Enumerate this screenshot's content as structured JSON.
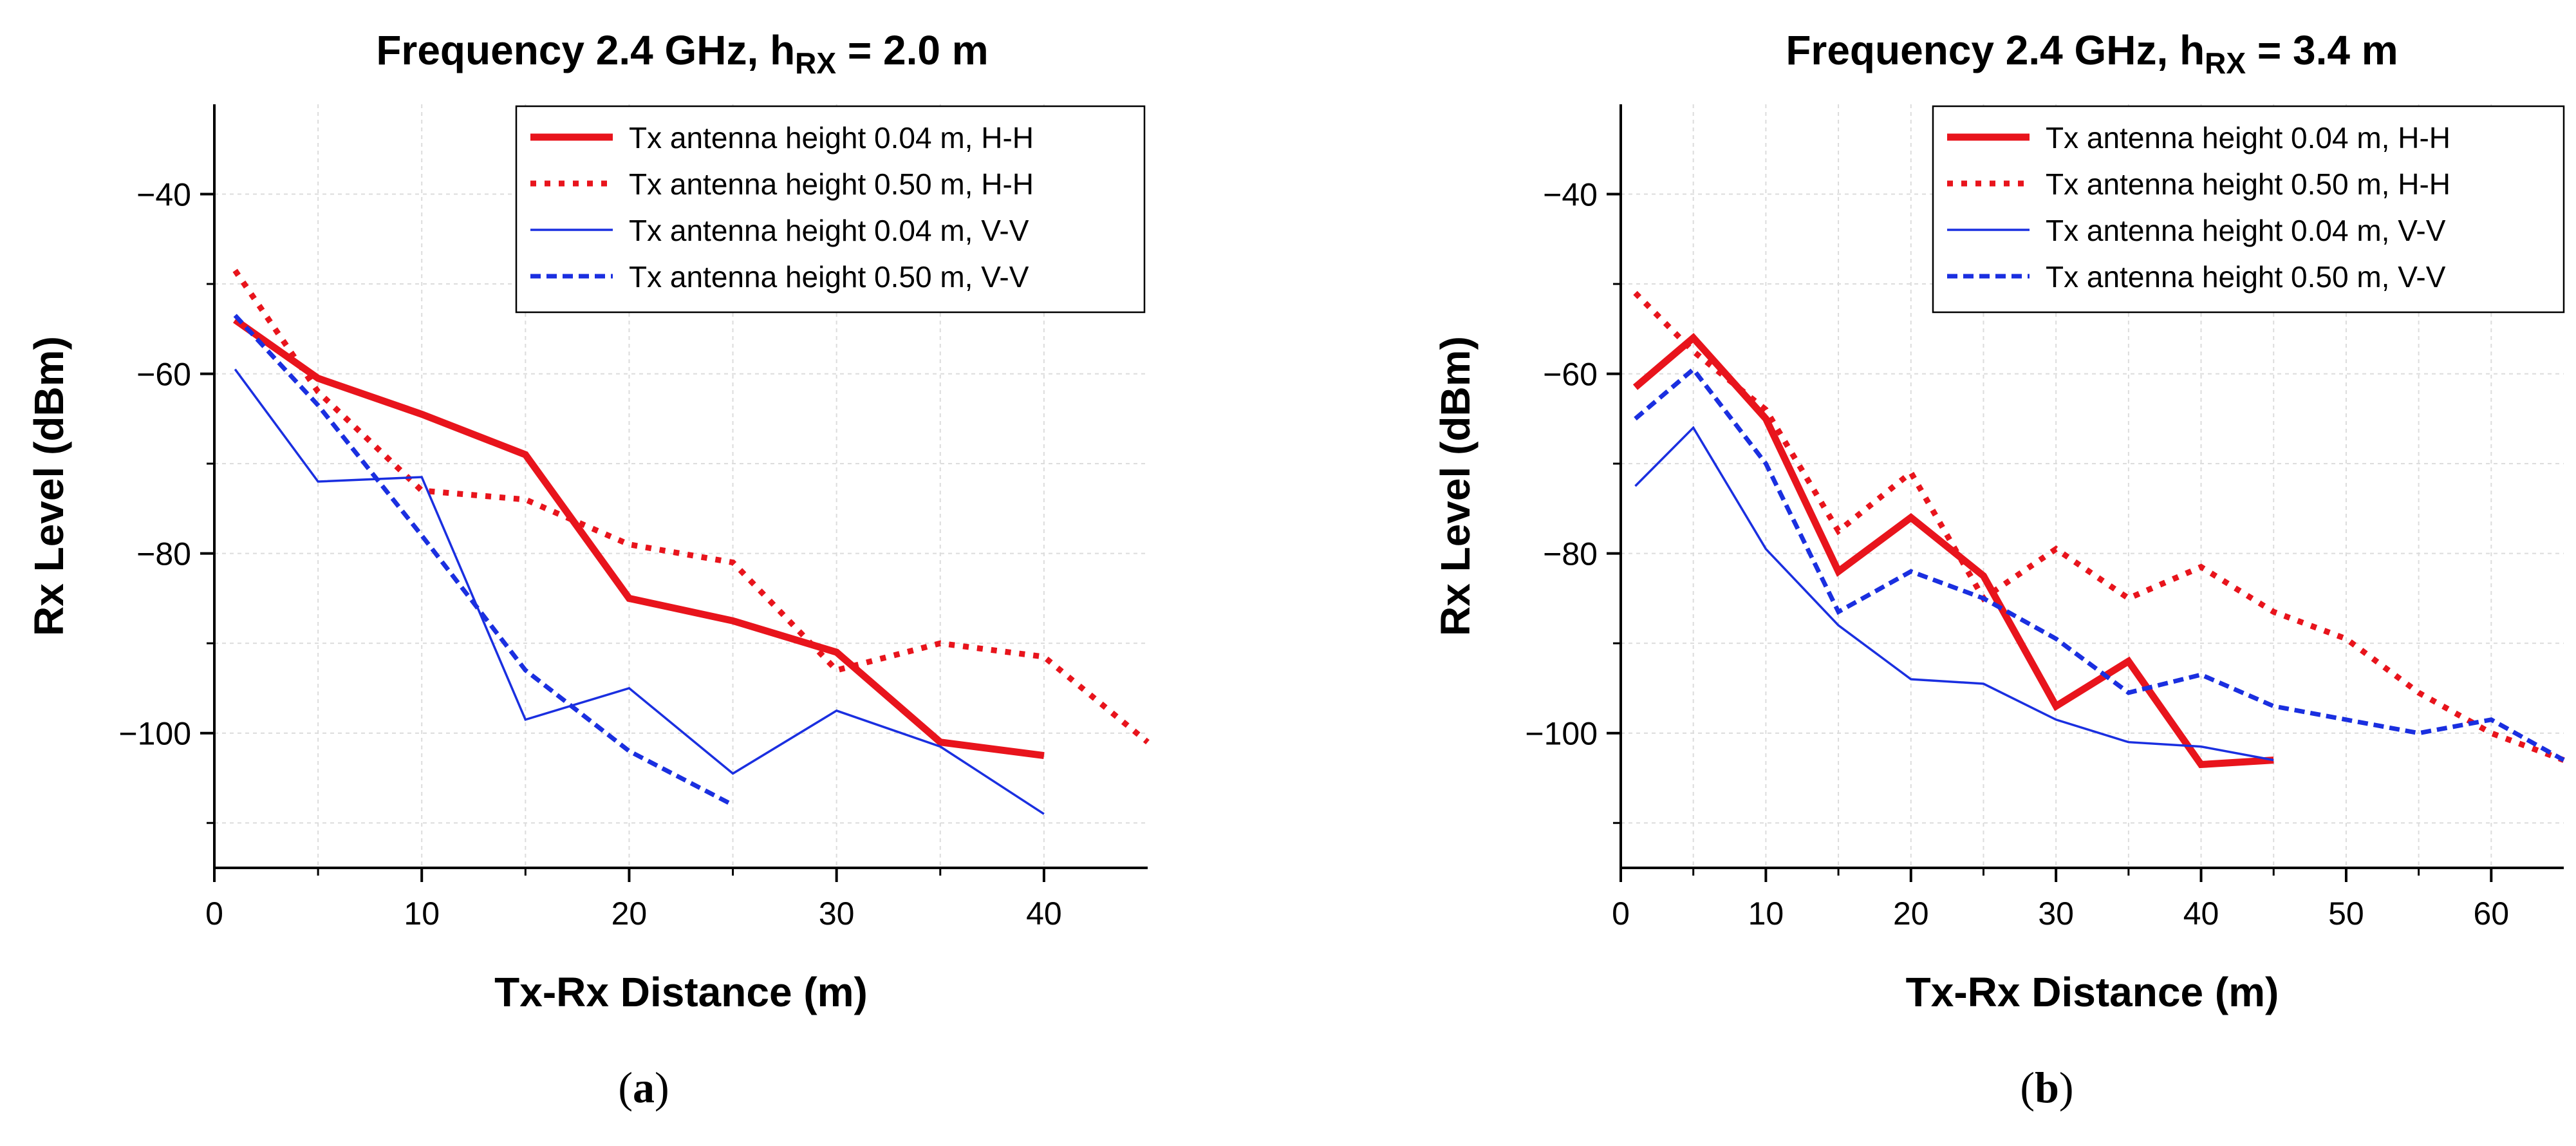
{
  "chart_data": [
    {
      "type": "line",
      "panel_label": "(a)",
      "title": {
        "prefix": "Frequency 2.4 GHz, h",
        "subscript": "RX",
        "suffix": " = 2.0 m"
      },
      "xlabel": "Tx-Rx Distance (m)",
      "ylabel": "Rx Level (dBm)",
      "xlim": [
        0,
        45
      ],
      "ylim": [
        -115,
        -30
      ],
      "xticks": [
        0,
        10,
        20,
        30,
        40
      ],
      "xticks_minor": [
        5,
        15,
        25,
        35
      ],
      "yticks": [
        -40,
        -60,
        -80,
        -100
      ],
      "yticks_minor": [
        -50,
        -70,
        -90,
        -110
      ],
      "grid": true,
      "legend_position": "top-right",
      "series": [
        {
          "name": "Tx antenna height 0.04 m, H-H",
          "color": "#e8141c",
          "style": "solid-thick",
          "x": [
            1,
            5,
            10,
            15,
            20,
            25,
            30,
            35,
            40
          ],
          "y": [
            -54,
            -60.5,
            -64.5,
            -69,
            -85,
            -87.5,
            -91,
            -101,
            -102.5
          ]
        },
        {
          "name": "Tx antenna height 0.50 m, H-H",
          "color": "#e8141c",
          "style": "dotted",
          "x": [
            1,
            5,
            10,
            15,
            20,
            25,
            30,
            35,
            40,
            45
          ],
          "y": [
            -48.5,
            -62,
            -73,
            -74,
            -79,
            -81,
            -93,
            -90,
            -91.5,
            -101
          ]
        },
        {
          "name": "Tx antenna height 0.04 m, V-V",
          "color": "#1a2fe0",
          "style": "solid-thin",
          "x": [
            1,
            5,
            10,
            15,
            20,
            25,
            30,
            35,
            40
          ],
          "y": [
            -59.5,
            -72,
            -71.5,
            -98.5,
            -95,
            -104.5,
            -97.5,
            -101.5,
            -109
          ]
        },
        {
          "name": "Tx antenna height 0.50 m, V-V",
          "color": "#1a2fe0",
          "style": "dashed",
          "x": [
            1,
            5,
            10,
            15,
            20,
            25
          ],
          "y": [
            -53.5,
            -63.5,
            -78,
            -93,
            -102,
            -108
          ]
        }
      ]
    },
    {
      "type": "line",
      "panel_label": "(b)",
      "title": {
        "prefix": "Frequency 2.4 GHz, h",
        "subscript": "RX",
        "suffix": " = 3.4 m"
      },
      "xlabel": "Tx-Rx Distance (m)",
      "ylabel": "Rx Level (dBm)",
      "xlim": [
        0,
        65
      ],
      "ylim": [
        -115,
        -30
      ],
      "xticks": [
        0,
        10,
        20,
        30,
        40,
        50,
        60
      ],
      "xticks_minor": [
        5,
        15,
        25,
        35,
        45,
        55
      ],
      "yticks": [
        -40,
        -60,
        -80,
        -100
      ],
      "yticks_minor": [
        -50,
        -70,
        -90,
        -110
      ],
      "grid": true,
      "legend_position": "top-right",
      "series": [
        {
          "name": "Tx antenna height 0.04 m, H-H",
          "color": "#e8141c",
          "style": "solid-thick",
          "x": [
            1,
            5,
            10,
            15,
            20,
            25,
            30,
            35,
            40,
            45
          ],
          "y": [
            -61.5,
            -56,
            -65,
            -82,
            -76,
            -82.5,
            -97,
            -92,
            -103.5,
            -103
          ]
        },
        {
          "name": "Tx antenna height 0.50 m, H-H",
          "color": "#e8141c",
          "style": "dotted",
          "x": [
            1,
            5,
            10,
            15,
            20,
            25,
            30,
            35,
            40,
            45,
            50,
            55,
            60,
            65
          ],
          "y": [
            -51,
            -57.5,
            -64,
            -77.5,
            -71,
            -85,
            -79.5,
            -85,
            -81.5,
            -86.5,
            -89.5,
            -95.5,
            -100,
            -103
          ]
        },
        {
          "name": "Tx antenna height 0.04 m, V-V",
          "color": "#1a2fe0",
          "style": "solid-thin",
          "x": [
            1,
            5,
            10,
            15,
            20,
            25,
            30,
            35,
            40,
            45
          ],
          "y": [
            -72.5,
            -66,
            -79.5,
            -88,
            -94,
            -94.5,
            -98.5,
            -101,
            -101.5,
            -103
          ]
        },
        {
          "name": "Tx antenna height 0.50 m, V-V",
          "color": "#1a2fe0",
          "style": "dashed",
          "x": [
            1,
            5,
            10,
            15,
            20,
            25,
            30,
            35,
            40,
            45,
            50,
            55,
            60,
            65
          ],
          "y": [
            -65,
            -59.5,
            -70,
            -86.5,
            -82,
            -85,
            -89.5,
            -95.5,
            -93.5,
            -97,
            -98.5,
            -100,
            -98.5,
            -103
          ]
        }
      ]
    }
  ]
}
